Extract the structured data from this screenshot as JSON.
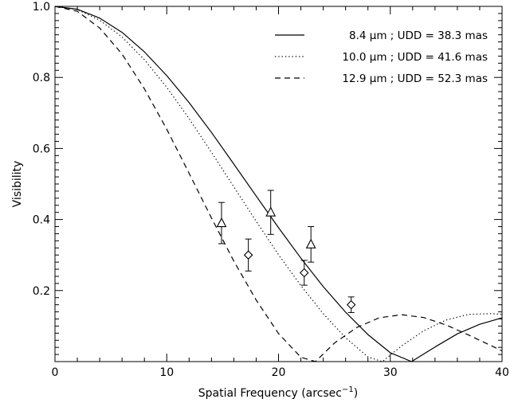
{
  "chart_data": {
    "type": "line",
    "xlabel": "Spatial Frequency (arcsec",
    "xlabel_sup": "−1",
    "xlabel_close": ")",
    "ylabel": "Visibility",
    "xlim": [
      0,
      40
    ],
    "ylim": [
      0,
      1.0
    ],
    "x_ticks": [
      "0",
      "10",
      "20",
      "30",
      "40"
    ],
    "y_ticks": [
      "0.2",
      "0.4",
      "0.6",
      "0.8",
      "1.0"
    ],
    "legend_position": "top-right",
    "series": [
      {
        "name": "8.4 μm ; UDD = 38.3 mas",
        "style": "solid",
        "x": [
          0,
          2,
          4,
          6,
          8,
          10,
          12,
          14,
          16,
          18,
          20,
          22,
          24,
          26,
          28,
          30,
          31.9,
          34,
          36,
          38,
          40
        ],
        "y": [
          1.0,
          0.992,
          0.967,
          0.927,
          0.872,
          0.805,
          0.729,
          0.645,
          0.556,
          0.466,
          0.377,
          0.291,
          0.211,
          0.139,
          0.076,
          0.025,
          0.0,
          0.041,
          0.078,
          0.105,
          0.123
        ]
      },
      {
        "name": "10.0 μm ; UDD = 41.6 mas",
        "style": "dotted",
        "x": [
          0,
          2,
          4,
          6,
          8,
          10,
          12,
          14,
          16,
          18,
          20,
          22,
          24,
          26,
          28,
          29.3,
          31,
          33,
          35,
          37,
          39,
          40
        ],
        "y": [
          1.0,
          0.991,
          0.961,
          0.914,
          0.85,
          0.772,
          0.684,
          0.589,
          0.492,
          0.395,
          0.301,
          0.214,
          0.135,
          0.067,
          0.013,
          0.0,
          0.044,
          0.087,
          0.117,
          0.133,
          0.135,
          0.133
        ]
      },
      {
        "name": "12.9 μm ; UDD = 52.3 mas",
        "style": "dashed",
        "x": [
          0,
          2,
          4,
          6,
          8,
          10,
          12,
          14,
          16,
          18,
          20,
          22,
          23.3,
          25,
          27,
          29,
          31,
          33,
          35,
          37,
          39,
          40
        ],
        "y": [
          1.0,
          0.986,
          0.939,
          0.866,
          0.768,
          0.654,
          0.53,
          0.404,
          0.283,
          0.173,
          0.079,
          0.012,
          0.0,
          0.052,
          0.096,
          0.123,
          0.132,
          0.124,
          0.103,
          0.075,
          0.045,
          0.03
        ]
      }
    ],
    "measurements": [
      {
        "marker": "triangle",
        "points": [
          {
            "x": 14.9,
            "y": 0.39,
            "err": 0.058
          },
          {
            "x": 19.3,
            "y": 0.42,
            "err": 0.062
          },
          {
            "x": 22.9,
            "y": 0.33,
            "err": 0.05
          }
        ]
      },
      {
        "marker": "diamond",
        "points": [
          {
            "x": 17.3,
            "y": 0.3,
            "err": 0.045
          },
          {
            "x": 22.3,
            "y": 0.25,
            "err": 0.035
          },
          {
            "x": 26.5,
            "y": 0.16,
            "err": 0.022
          }
        ]
      }
    ]
  }
}
